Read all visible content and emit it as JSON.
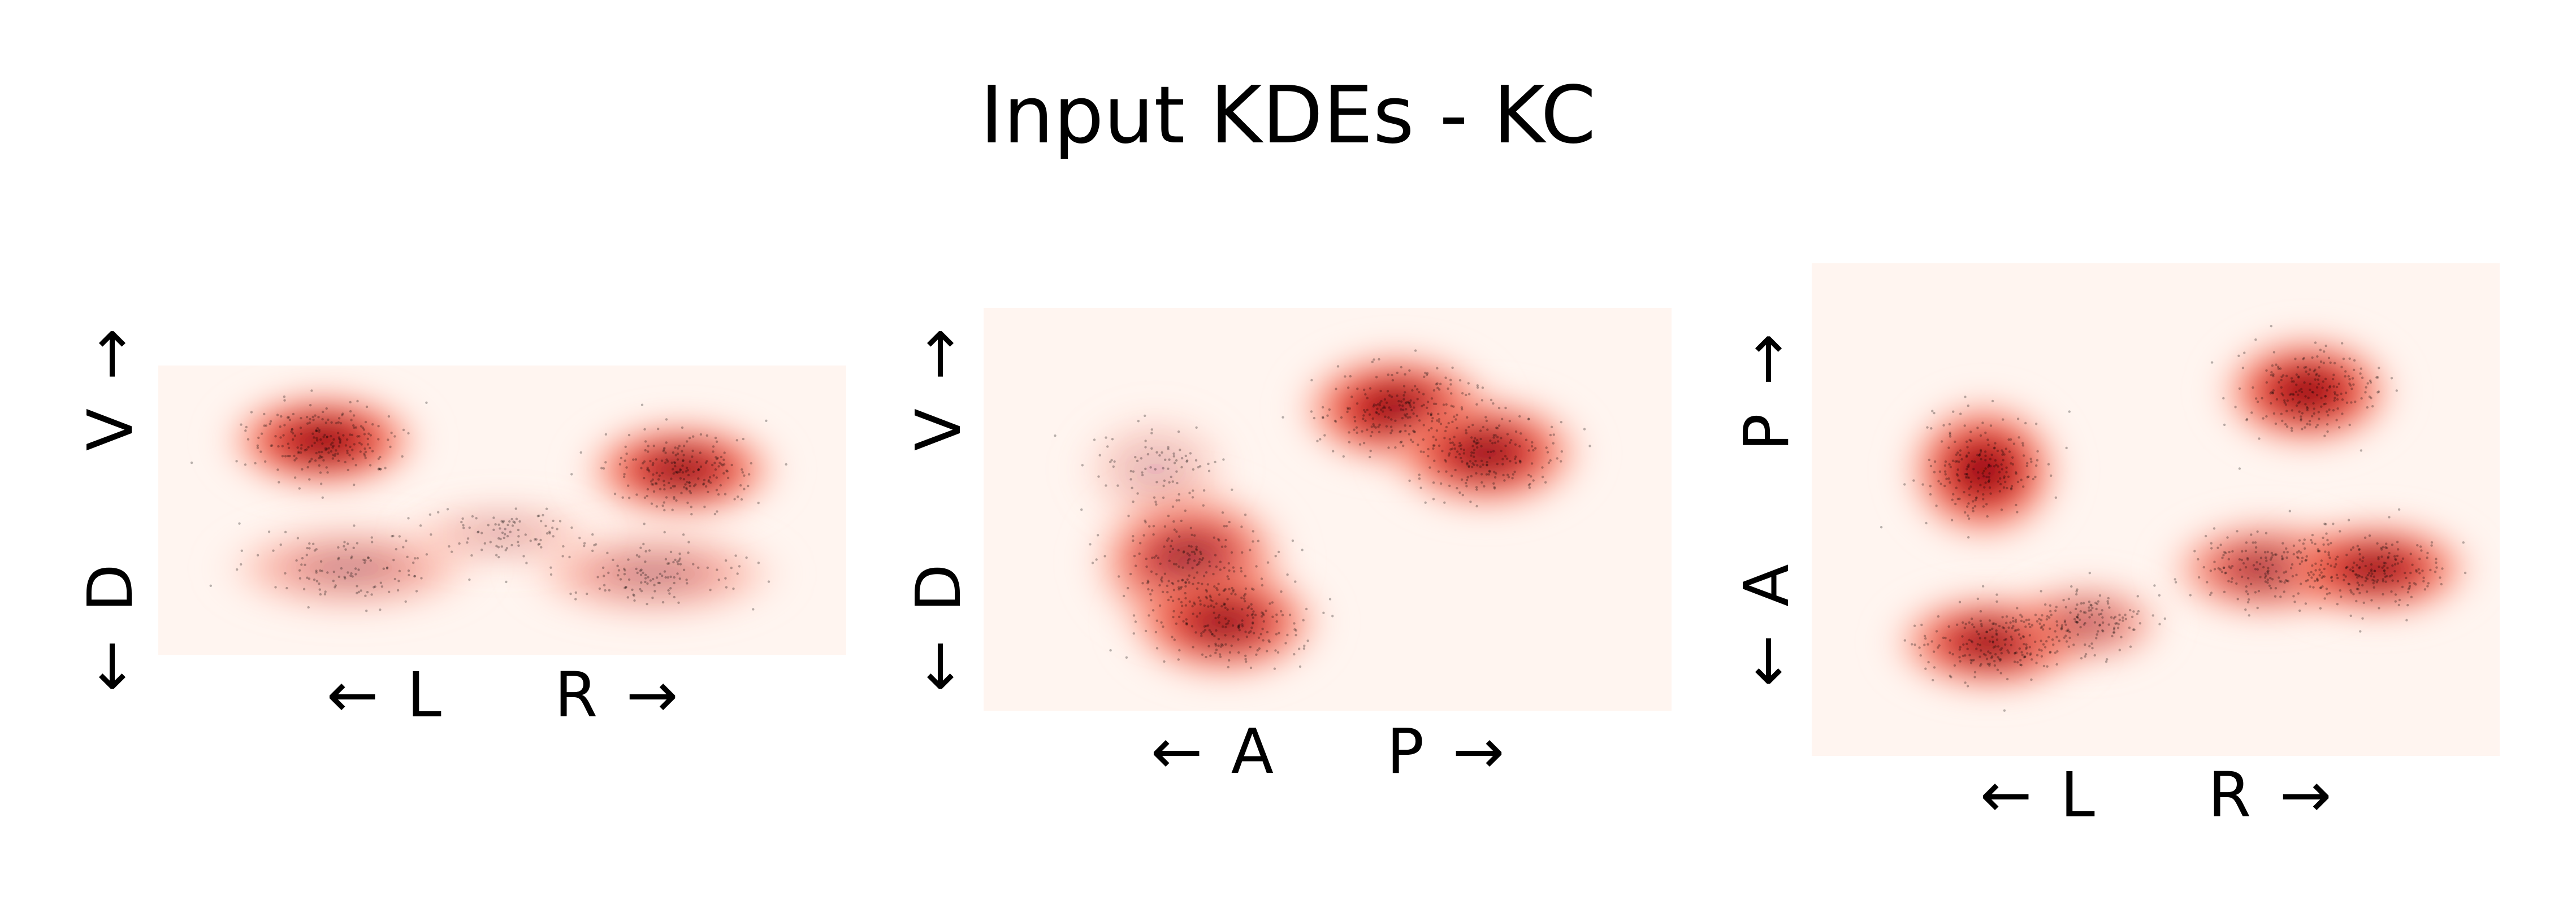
{
  "colors": {
    "background": "#ffffff",
    "kde_low": "#fff5f0",
    "kde_mid": "#fb6a4a",
    "kde_high": "#67000d",
    "points": "#000000"
  },
  "chart_data": {
    "type": "heatmap",
    "title": "Input KDEs - KC",
    "colormap": "Reds",
    "panels": [
      {
        "view": "frontal",
        "xlabel": {
          "neg_arrow": "←",
          "neg": "L",
          "pos": "R",
          "pos_arrow": "→"
        },
        "ylabel": {
          "neg_arrow": "←",
          "neg": "D",
          "pos": "V",
          "pos_arrow": "→"
        },
        "blobs": [
          {
            "x": 0.24,
            "y": 0.26,
            "sx": 0.1,
            "sy": 0.12,
            "intensity": 1.0
          },
          {
            "x": 0.76,
            "y": 0.36,
            "sx": 0.1,
            "sy": 0.12,
            "intensity": 0.95
          },
          {
            "x": 0.28,
            "y": 0.7,
            "sx": 0.13,
            "sy": 0.11,
            "intensity": 0.45
          },
          {
            "x": 0.72,
            "y": 0.72,
            "sx": 0.13,
            "sy": 0.11,
            "intensity": 0.45
          },
          {
            "x": 0.5,
            "y": 0.58,
            "sx": 0.1,
            "sy": 0.08,
            "intensity": 0.3
          }
        ]
      },
      {
        "view": "lateral",
        "xlabel": {
          "neg_arrow": "←",
          "neg": "A",
          "pos": "P",
          "pos_arrow": "→"
        },
        "ylabel": {
          "neg_arrow": "←",
          "neg": "D",
          "pos": "V",
          "pos_arrow": "→"
        },
        "blobs": [
          {
            "x": 0.6,
            "y": 0.25,
            "sx": 0.1,
            "sy": 0.1,
            "intensity": 1.0
          },
          {
            "x": 0.73,
            "y": 0.36,
            "sx": 0.1,
            "sy": 0.1,
            "intensity": 0.95
          },
          {
            "x": 0.3,
            "y": 0.63,
            "sx": 0.1,
            "sy": 0.13,
            "intensity": 0.85
          },
          {
            "x": 0.35,
            "y": 0.78,
            "sx": 0.1,
            "sy": 0.1,
            "intensity": 0.9
          },
          {
            "x": 0.25,
            "y": 0.4,
            "sx": 0.08,
            "sy": 0.1,
            "intensity": 0.25
          }
        ]
      },
      {
        "view": "dorsal",
        "xlabel": {
          "neg_arrow": "←",
          "neg": "L",
          "pos": "R",
          "pos_arrow": "→"
        },
        "ylabel": {
          "neg_arrow": "←",
          "neg": "A",
          "pos": "P",
          "pos_arrow": "→"
        },
        "blobs": [
          {
            "x": 0.25,
            "y": 0.42,
            "sx": 0.08,
            "sy": 0.1,
            "intensity": 1.0
          },
          {
            "x": 0.72,
            "y": 0.26,
            "sx": 0.09,
            "sy": 0.08,
            "intensity": 1.0
          },
          {
            "x": 0.26,
            "y": 0.77,
            "sx": 0.1,
            "sy": 0.07,
            "intensity": 0.95
          },
          {
            "x": 0.4,
            "y": 0.73,
            "sx": 0.08,
            "sy": 0.06,
            "intensity": 0.6
          },
          {
            "x": 0.66,
            "y": 0.62,
            "sx": 0.1,
            "sy": 0.07,
            "intensity": 0.8
          },
          {
            "x": 0.82,
            "y": 0.62,
            "sx": 0.1,
            "sy": 0.07,
            "intensity": 0.95
          }
        ]
      }
    ]
  }
}
